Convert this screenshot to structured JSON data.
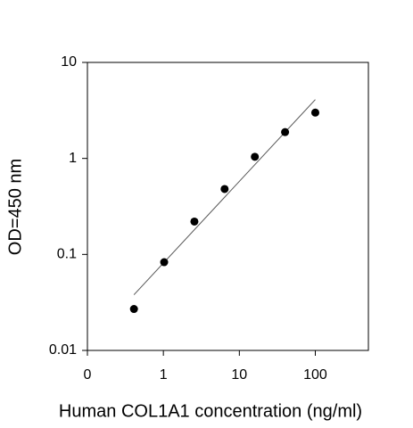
{
  "chart_data": {
    "type": "scatter",
    "x_label": "Human COL1A1 concentration (ng/ml)",
    "y_label": "OD=450 nm",
    "x": [
      0.41,
      1.024,
      2.56,
      6.4,
      16,
      40,
      100
    ],
    "values": [
      0.027,
      0.083,
      0.22,
      0.48,
      1.04,
      1.88,
      3.0
    ],
    "color": "#000000",
    "fit": {
      "x": [
        0.41,
        100
      ],
      "y": [
        0.038,
        4.1
      ],
      "color": "#555555"
    },
    "xscale": "log",
    "yscale": "log",
    "xlim": [
      0.1,
      500
    ],
    "ylim": [
      0.01,
      10
    ],
    "xticks": [
      {
        "value": 0.1,
        "label": "0"
      },
      1,
      10,
      100
    ],
    "yticks": [
      0.01,
      0.1,
      1,
      10
    ],
    "grid": false
  }
}
